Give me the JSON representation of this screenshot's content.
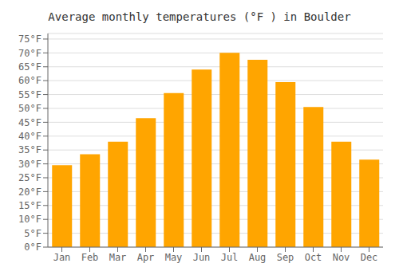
{
  "chart_data": {
    "type": "bar",
    "title": "Average monthly temperatures (°F ) in Boulder",
    "categories": [
      "Jan",
      "Feb",
      "Mar",
      "Apr",
      "May",
      "Jun",
      "Jul",
      "Aug",
      "Sep",
      "Oct",
      "Nov",
      "Dec"
    ],
    "values": [
      29.5,
      33.5,
      38.0,
      46.5,
      55.5,
      64.0,
      70.0,
      67.5,
      59.5,
      50.5,
      38.0,
      31.5
    ],
    "color": "#FFA500",
    "ylim": [
      0,
      77
    ],
    "yticks": [
      {
        "value": 0,
        "label": "0°F"
      },
      {
        "value": 5,
        "label": "5°F"
      },
      {
        "value": 10,
        "label": "10°F"
      },
      {
        "value": 15,
        "label": "15°F"
      },
      {
        "value": 20,
        "label": "20°F"
      },
      {
        "value": 25,
        "label": "25°F"
      },
      {
        "value": 30,
        "label": "30°F"
      },
      {
        "value": 35,
        "label": "35°F"
      },
      {
        "value": 40,
        "label": "40°F"
      },
      {
        "value": 45,
        "label": "45°F"
      },
      {
        "value": 50,
        "label": "50°F"
      },
      {
        "value": 55,
        "label": "55°F"
      },
      {
        "value": 60,
        "label": "60°F"
      },
      {
        "value": 65,
        "label": "65°F"
      },
      {
        "value": 70,
        "label": "70°F"
      },
      {
        "value": 75,
        "label": "75°F"
      }
    ],
    "grid": true
  }
}
